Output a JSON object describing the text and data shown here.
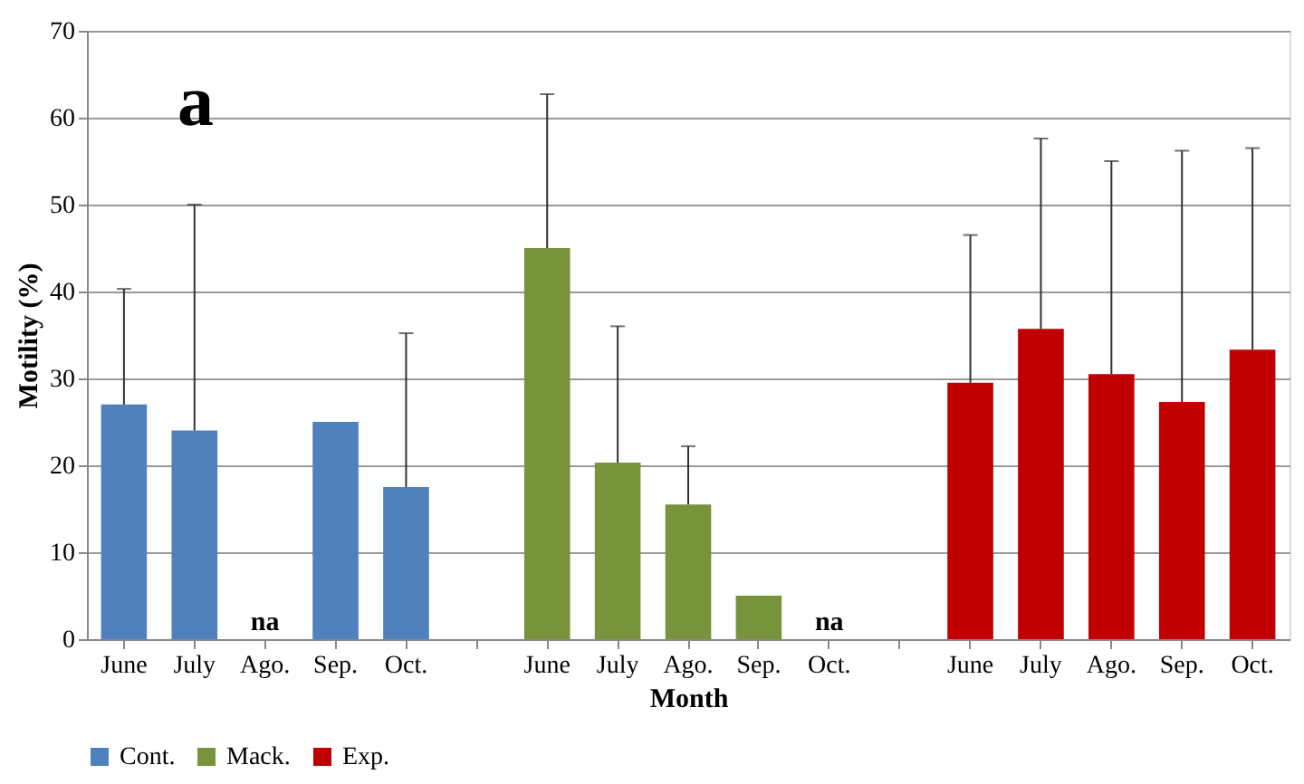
{
  "chart_data": {
    "type": "bar",
    "xlabel": "Month",
    "ylabel": "Motility (%)",
    "categories": [
      "June",
      "July",
      "Ago.",
      "Sep.",
      "Oct.",
      null,
      "June",
      "July",
      "Ago.",
      "Sep.",
      "Oct.",
      null,
      "June",
      "July",
      "Ago.",
      "Sep.",
      "Oct."
    ],
    "ylim": [
      0,
      70
    ],
    "yticks": [
      0,
      10,
      20,
      30,
      40,
      50,
      60,
      70
    ],
    "grid": "y",
    "legend": "bottom",
    "annotations": [
      "a"
    ],
    "series": [
      {
        "name": "Cont.",
        "color": "#4f81bd",
        "values": [
          27,
          24,
          null,
          25,
          17.5,
          null,
          null,
          null,
          null,
          null,
          null,
          null,
          null,
          null,
          null,
          null,
          null
        ],
        "errors": [
          [
            27,
            40.3
          ],
          [
            24,
            50
          ],
          null,
          null,
          [
            17.5,
            35.2
          ],
          null,
          null,
          null,
          null,
          null,
          null,
          null,
          null,
          null,
          null,
          null,
          null
        ],
        "value_labels": [
          null,
          null,
          "na",
          null,
          null,
          null,
          null,
          null,
          null,
          null,
          null,
          null,
          null,
          null,
          null,
          null,
          null
        ]
      },
      {
        "name": "Mack.",
        "color": "#77933c",
        "values": [
          null,
          null,
          null,
          null,
          null,
          null,
          45,
          20.3,
          15.5,
          5,
          null,
          null,
          null,
          null,
          null,
          null,
          null
        ],
        "errors": [
          null,
          null,
          null,
          null,
          null,
          null,
          [
            45,
            62.7
          ],
          [
            20.3,
            36
          ],
          [
            15.5,
            22.2
          ],
          null,
          null,
          null,
          null,
          null,
          null,
          null,
          null
        ],
        "value_labels": [
          null,
          null,
          null,
          null,
          null,
          null,
          null,
          null,
          null,
          null,
          "na",
          null,
          null,
          null,
          null,
          null,
          null
        ]
      },
      {
        "name": "Exp.",
        "color": "#c00000",
        "values": [
          null,
          null,
          null,
          null,
          null,
          null,
          null,
          null,
          null,
          null,
          null,
          null,
          29.5,
          35.7,
          30.5,
          27.3,
          33.3
        ],
        "errors": [
          null,
          null,
          null,
          null,
          null,
          null,
          null,
          null,
          null,
          null,
          null,
          null,
          [
            29.5,
            46.5
          ],
          [
            35.7,
            57.6
          ],
          [
            30.5,
            55
          ],
          [
            27.3,
            56.2
          ],
          [
            33.3,
            56.5
          ]
        ]
      }
    ]
  }
}
